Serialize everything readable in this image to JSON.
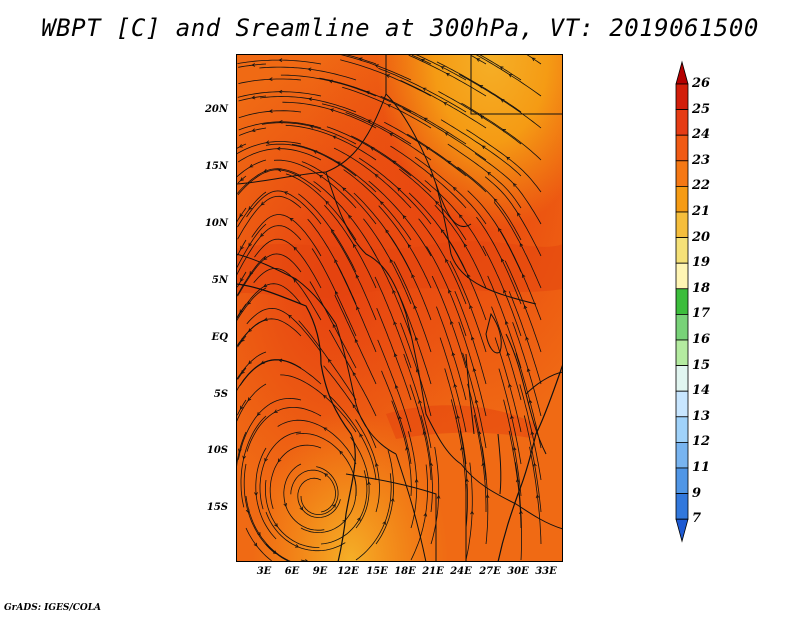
{
  "title": "WBPT [C] and Sreamline at 300hPa, VT: 2019061500",
  "footer": "GrADS: IGES/COLA",
  "map": {
    "field": "Wet-bulb potential temperature",
    "units": "C",
    "level": "300hPa",
    "valid_time": "2019061500",
    "lat_ticks": [
      "20N",
      "15N",
      "10N",
      "5N",
      "EQ",
      "5S",
      "10S",
      "15S"
    ],
    "lon_ticks": [
      "3E",
      "6E",
      "9E",
      "12E",
      "15E",
      "18E",
      "21E",
      "24E",
      "27E",
      "30E",
      "33E"
    ]
  },
  "colorbar": {
    "levels": [
      "26",
      "25",
      "24",
      "23",
      "22",
      "21",
      "20",
      "19",
      "18",
      "17",
      "16",
      "15",
      "14",
      "13",
      "12",
      "11",
      "9",
      "7"
    ],
    "colors": [
      "#b40000",
      "#d21e0a",
      "#e63c14",
      "#f05a14",
      "#f57814",
      "#f59b14",
      "#f5be3c",
      "#f5e178",
      "#fff5b4",
      "#3cbe3c",
      "#78d278",
      "#b4eba0",
      "#e1f5f0",
      "#c8e6ff",
      "#a0d2fa",
      "#78b4f0",
      "#5096e6",
      "#3278dc",
      "#1e5ad2"
    ]
  }
}
